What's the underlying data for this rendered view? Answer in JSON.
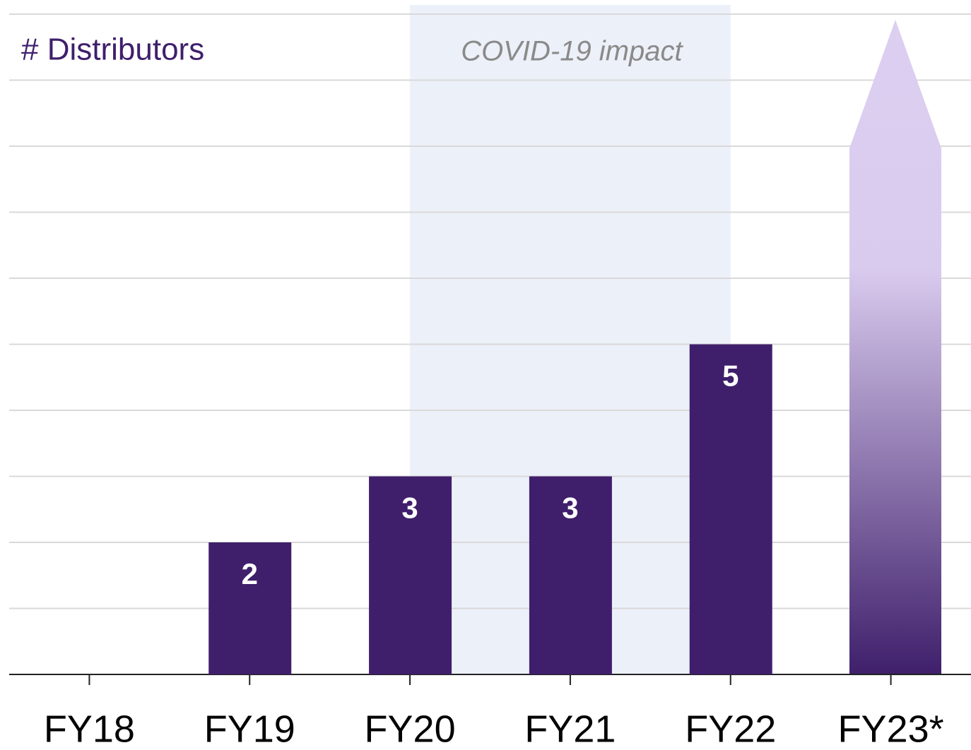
{
  "chart_data": {
    "type": "bar",
    "title": "# Distributors",
    "annotation": "COVID-19 impact",
    "shaded_range": [
      "FY20",
      "FY22"
    ],
    "categories": [
      "FY18",
      "FY19",
      "FY20",
      "FY21",
      "FY22",
      "FY23*"
    ],
    "values": [
      null,
      2,
      3,
      3,
      5,
      null
    ],
    "color": "#3f1f6b",
    "ylim": [
      0,
      10
    ],
    "yticks": [
      0,
      1,
      2,
      3,
      4,
      5,
      6,
      7,
      8,
      9,
      10
    ],
    "grid": true
  }
}
